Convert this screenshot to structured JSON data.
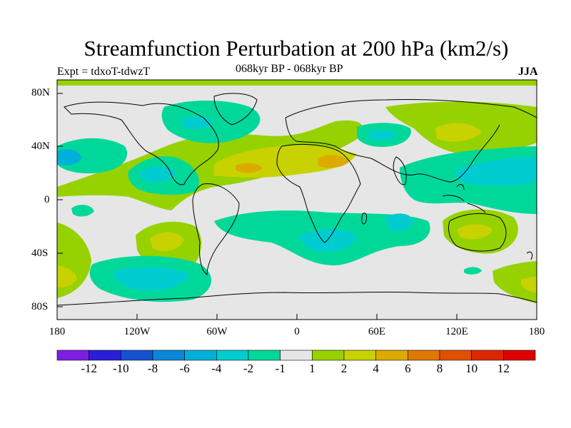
{
  "title": "Streamfunction Perturbation at 200 hPa (km2/s)",
  "subtitle_left": "Expt = tdxoT-tdwzT",
  "subtitle_center": "068kyr BP - 068kyr BP",
  "subtitle_right": "JJA",
  "y_ticks": [
    "80N",
    "40N",
    "0",
    "40S",
    "80S"
  ],
  "x_ticks": [
    "180",
    "120W",
    "60W",
    "0",
    "60E",
    "120E",
    "180"
  ],
  "colorbar": {
    "labels": [
      "-12",
      "-10",
      "-8",
      "-6",
      "-4",
      "-2",
      "-1",
      "1",
      "2",
      "4",
      "6",
      "8",
      "10",
      "12"
    ],
    "colors": [
      "#7f1ee0",
      "#2a1fd8",
      "#1452d0",
      "#0a86d8",
      "#00b0d8",
      "#00ccd0",
      "#00d89a",
      "#e6e6e6",
      "#96d200",
      "#c8d200",
      "#dcaa00",
      "#e07800",
      "#e05000",
      "#dc2800",
      "#e00000"
    ]
  },
  "map_colors": {
    "background": "#e6e6e6",
    "pos1": "#96d200",
    "pos2": "#c8d200",
    "pos3": "#dcaa00",
    "neg1": "#00d89a",
    "neg2": "#00ccd0",
    "neg3": "#00b0d8"
  }
}
